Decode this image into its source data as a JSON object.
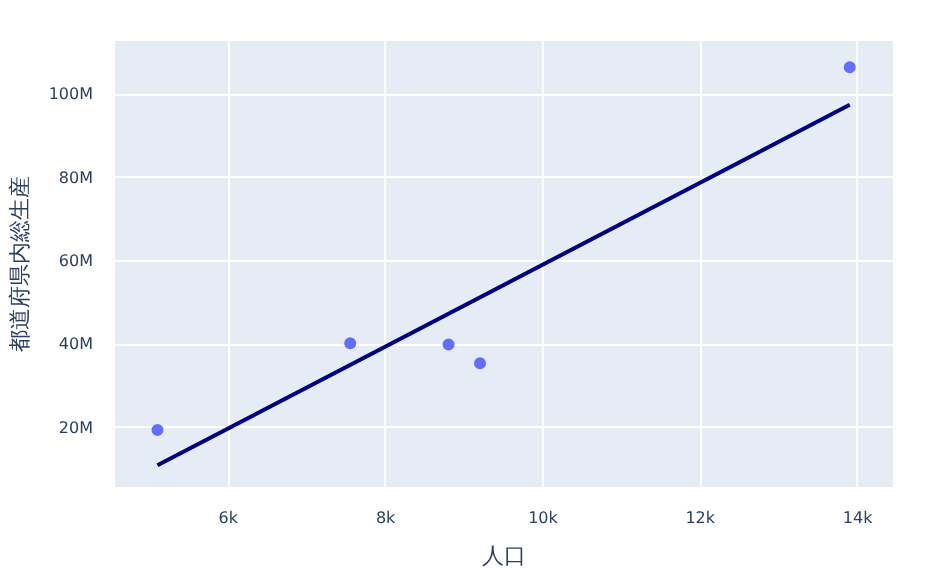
{
  "chart_data": {
    "type": "scatter",
    "xlabel": "人口",
    "ylabel": "都道府県内総生産",
    "series": [
      {
        "marker": "circle",
        "color": "#636efa",
        "x": [
          5100,
          7550,
          8800,
          9200,
          13900
        ],
        "values": [
          19500000,
          40300000,
          40000000,
          35500000,
          106500000
        ]
      },
      {
        "type": "line",
        "color": "#000080",
        "x": [
          5100,
          13900
        ],
        "values": [
          11000000,
          97500000
        ]
      }
    ],
    "xlim": [
      4560,
      14450
    ],
    "ylim": [
      5800000,
      112800000
    ],
    "xticks": [
      {
        "value": 6000,
        "label": "6k"
      },
      {
        "value": 8000,
        "label": "8k"
      },
      {
        "value": 10000,
        "label": "10k"
      },
      {
        "value": 12000,
        "label": "12k"
      },
      {
        "value": 14000,
        "label": "14k"
      }
    ],
    "yticks": [
      {
        "value": 20000000,
        "label": "20M"
      },
      {
        "value": 40000000,
        "label": "40M"
      },
      {
        "value": 60000000,
        "label": "60M"
      },
      {
        "value": 80000000,
        "label": "80M"
      },
      {
        "value": 100000000,
        "label": "100M"
      }
    ],
    "grid": true
  }
}
